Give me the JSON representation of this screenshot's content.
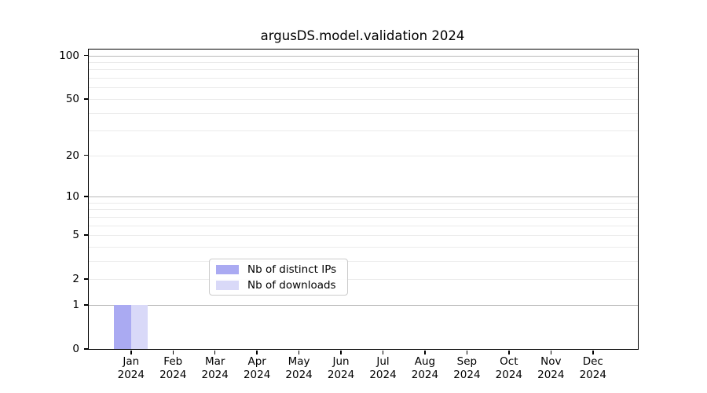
{
  "chart_data": {
    "type": "bar",
    "title": "argusDS.model.validation 2024",
    "categories": [
      "Jan",
      "Feb",
      "Mar",
      "Apr",
      "May",
      "Jun",
      "Jul",
      "Aug",
      "Sep",
      "Oct",
      "Nov",
      "Dec"
    ],
    "x_year_line": "2024",
    "series": [
      {
        "name": "Nb of distinct IPs",
        "color": "#aaaaf2",
        "values": [
          1,
          0,
          0,
          0,
          0,
          0,
          0,
          0,
          0,
          0,
          0,
          0
        ]
      },
      {
        "name": "Nb of downloads",
        "color": "#d9d9f8",
        "values": [
          1,
          0,
          0,
          0,
          0,
          0,
          0,
          0,
          0,
          0,
          0,
          0
        ]
      }
    ],
    "yscale": "log1p",
    "ylim": [
      0,
      110
    ],
    "ytick_labels": [
      0,
      1,
      2,
      5,
      10,
      20,
      50,
      100
    ],
    "y_major_gridlines": [
      1,
      10,
      100
    ],
    "y_minor_gridlines": [
      2,
      3,
      4,
      5,
      6,
      7,
      8,
      9,
      20,
      30,
      40,
      50,
      60,
      70,
      80,
      90
    ],
    "grid_major_color": "#b9b9b9",
    "grid_minor_color": "#ebebeb",
    "legend_position": "lower center",
    "xlabel": "",
    "ylabel": ""
  }
}
